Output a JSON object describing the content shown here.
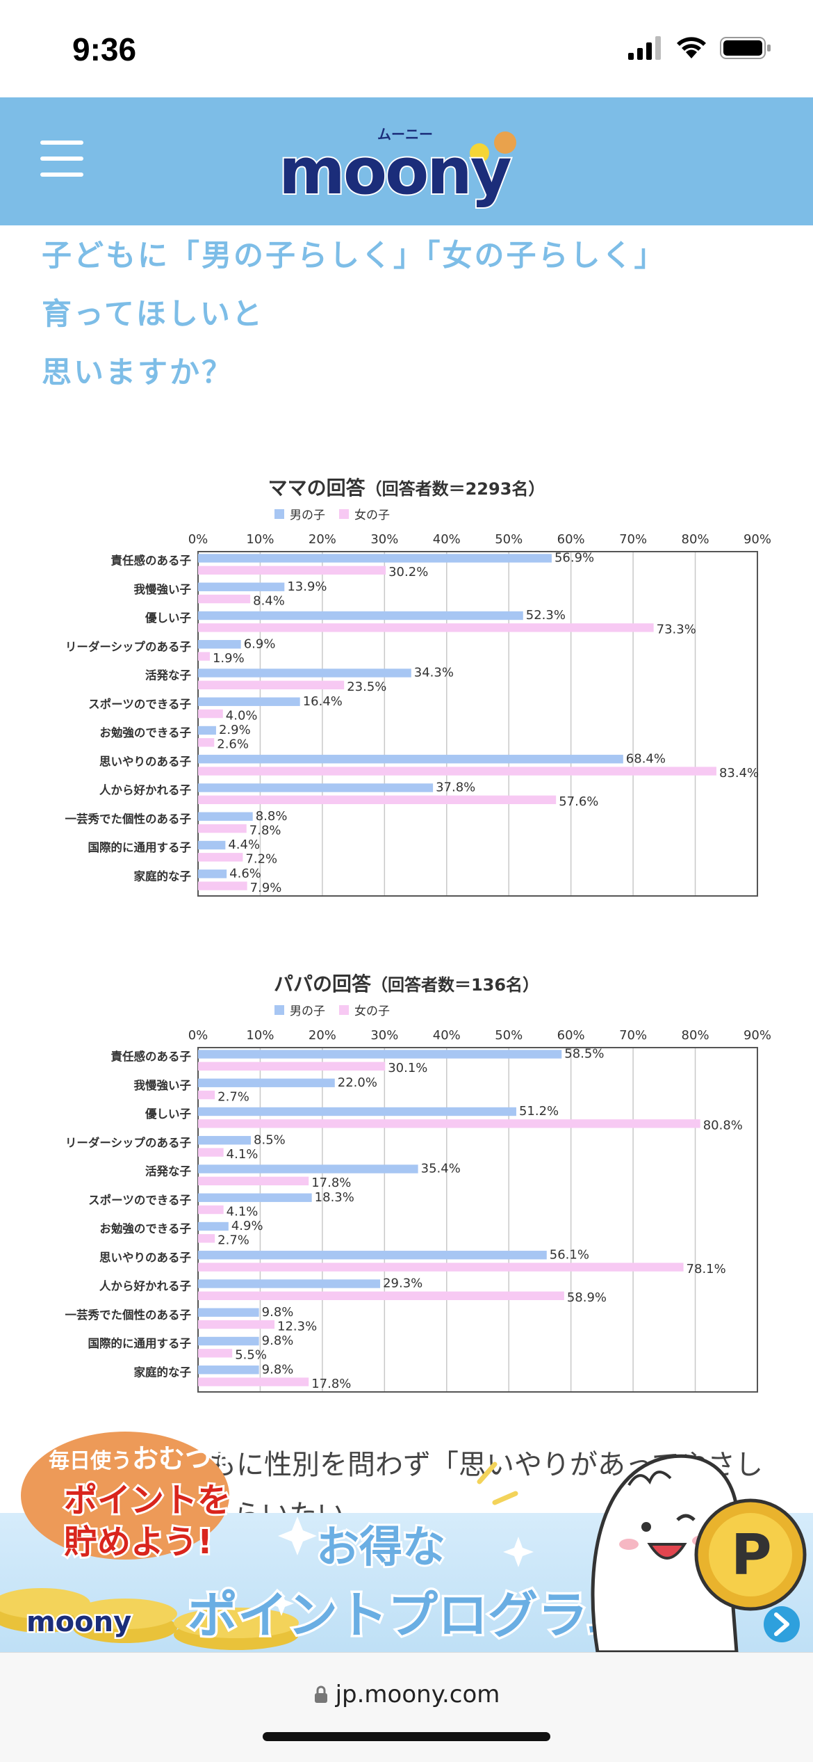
{
  "status": {
    "time": "9:36"
  },
  "header": {
    "logo_text": "moony",
    "logo_kana": "ムーニー"
  },
  "title_lines": [
    "子どもに「男の子らしく」「女の子らしく」",
    "育ってほしいと",
    "思いますか？"
  ],
  "colors": {
    "accent": "#7dbde7",
    "boy": "#a7c6f3",
    "girl": "#f7c9f3"
  },
  "chart_data": [
    {
      "type": "bar",
      "title": "ママの回答",
      "subtitle": "（回答者数＝2293名）",
      "legend": [
        "男の子",
        "女の子"
      ],
      "categories": [
        "責任感のある子",
        "我慢強い子",
        "優しい子",
        "リーダーシップのある子",
        "活発な子",
        "スポーツのできる子",
        "お勉強のできる子",
        "思いやりのある子",
        "人から好かれる子",
        "一芸秀でた個性のある子",
        "国際的に通用する子",
        "家庭的な子"
      ],
      "series": [
        {
          "name": "男の子",
          "values": [
            56.9,
            13.9,
            52.3,
            6.9,
            34.3,
            16.4,
            2.9,
            68.4,
            37.8,
            8.8,
            4.4,
            4.6
          ]
        },
        {
          "name": "女の子",
          "values": [
            30.2,
            8.4,
            73.3,
            1.9,
            23.5,
            4.0,
            2.6,
            83.4,
            57.6,
            7.8,
            7.2,
            7.9
          ]
        }
      ],
      "xlim": [
        0,
        90
      ],
      "ticks": [
        "0%",
        "10%",
        "20%",
        "30%",
        "40%",
        "50%",
        "60%",
        "70%",
        "80%",
        "90%"
      ],
      "grid": true
    },
    {
      "type": "bar",
      "title": "パパの回答",
      "subtitle": "（回答者数＝136名）",
      "legend": [
        "男の子",
        "女の子"
      ],
      "categories": [
        "責任感のある子",
        "我慢強い子",
        "優しい子",
        "リーダーシップのある子",
        "活発な子",
        "スポーツのできる子",
        "お勉強のできる子",
        "思いやりのある子",
        "人から好かれる子",
        "一芸秀でた個性のある子",
        "国際的に通用する子",
        "家庭的な子"
      ],
      "series": [
        {
          "name": "男の子",
          "values": [
            58.5,
            22.0,
            51.2,
            8.5,
            35.4,
            18.3,
            4.9,
            56.1,
            29.3,
            9.8,
            9.8,
            9.8
          ]
        },
        {
          "name": "女の子",
          "values": [
            30.1,
            2.7,
            80.8,
            4.1,
            17.8,
            4.1,
            2.7,
            78.1,
            58.9,
            12.3,
            5.5,
            17.8
          ]
        }
      ],
      "xlim": [
        0,
        90
      ],
      "ticks": [
        "0%",
        "10%",
        "20%",
        "30%",
        "40%",
        "50%",
        "60%",
        "70%",
        "80%",
        "90%"
      ],
      "grid": true
    }
  ],
  "body_text": [
    "ママ・パパともに性別を問わず「思いやりがあってやさし",
    "い子に育ってもらいたい"
  ],
  "banner": {
    "badge_line1_a": "毎日使う",
    "badge_line1_b": "おむつ",
    "badge_line1_c": "で",
    "badge_line2": "ポイントを",
    "badge_line3": "貯めよう!",
    "logo": "moony",
    "headline_small": "お得な",
    "headline": "ポイントプログラム",
    "coin_letter": "P"
  },
  "url_bar": {
    "url": "jp.moony.com"
  }
}
